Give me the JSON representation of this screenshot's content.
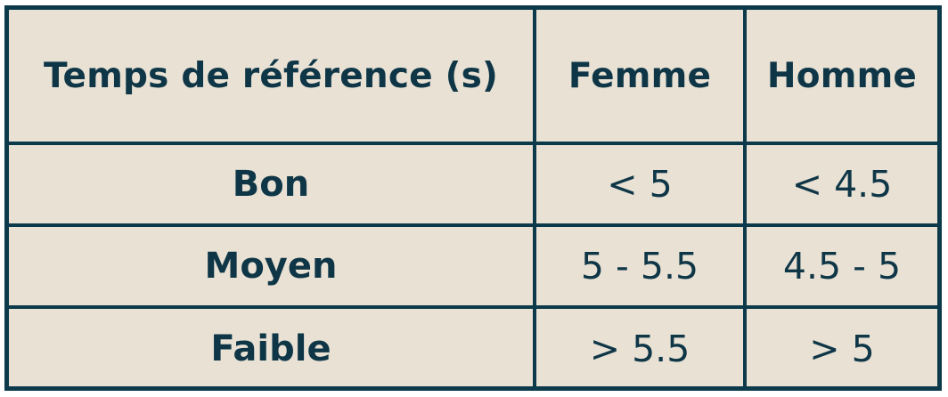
{
  "table": {
    "headers": [
      "Temps de référence (s)",
      "Femme",
      "Homme"
    ],
    "rows": [
      {
        "label": "Bon",
        "femme": "< 5",
        "homme": "< 4.5"
      },
      {
        "label": "Moyen",
        "femme": "5 - 5.5",
        "homme": "4.5 - 5"
      },
      {
        "label": "Faible",
        "femme": "> 5.5",
        "homme": "> 5"
      }
    ]
  },
  "colors": {
    "border": "#0d3a4b",
    "background": "#e8e1d4",
    "text": "#0f3647"
  }
}
